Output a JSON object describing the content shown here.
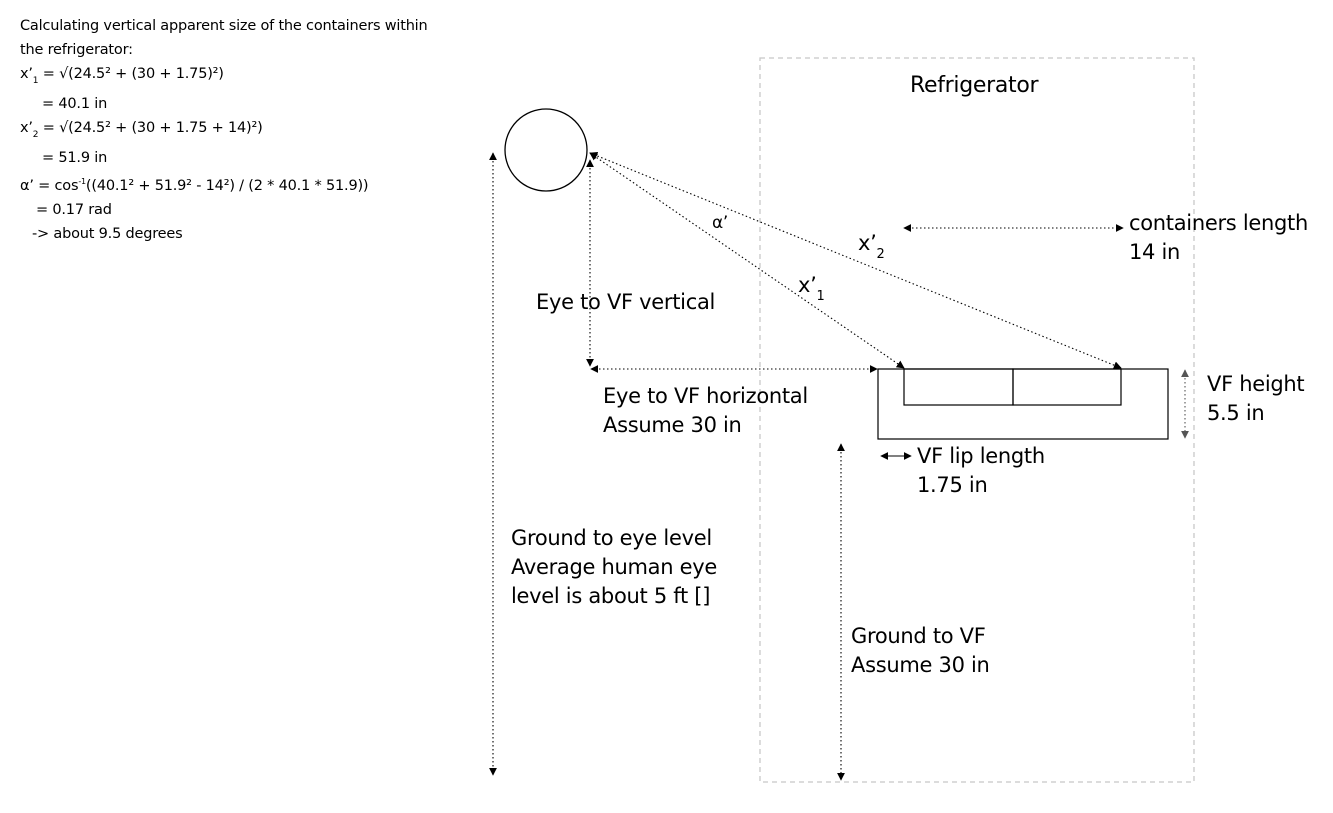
{
  "calculation": {
    "heading_1": "Calculating vertical apparent size of the containers within",
    "heading_2": "the refrigerator:",
    "x1_var": "x’",
    "x1_sub": "1",
    "x1_formula": " = √(24.5² + (30 + 1.75)²)",
    "x1_result": "= 40.1 in",
    "x2_var": "x’",
    "x2_sub": "2",
    "x2_formula": " = √(24.5² + (30 + 1.75 + 14)²)",
    "x2_result": "= 51.9 in",
    "alpha_formula_a": "α’ = cos",
    "alpha_formula_sup": "-1",
    "alpha_formula_b": "((40.1² + 51.9² - 14²) / (2 * 40.1 * 51.9))",
    "alpha_result": "= 0.17 rad",
    "alpha_degrees": "-> about 9.5 degrees"
  },
  "diagram": {
    "refrigerator_label": "Refrigerator",
    "alpha_label": "α’",
    "x2_label": "x’",
    "x2_sub": "2",
    "x1_label": "x’",
    "x1_sub": "1",
    "eye_to_vf_vertical": "Eye to VF vertical",
    "containers_length_1": "containers length",
    "containers_length_2": "14 in",
    "eye_to_vf_horizontal_1": "Eye to VF horizontal",
    "eye_to_vf_horizontal_2": "Assume 30 in",
    "vf_height_1": "VF height",
    "vf_height_2": "5.5 in",
    "vf_lip_1": "VF lip length",
    "vf_lip_2": "1.75 in",
    "ground_to_eye_1": "Ground to eye level",
    "ground_to_eye_2": "Average human eye",
    "ground_to_eye_3": "level is about 5 ft []",
    "ground_to_vf_1": "Ground to VF",
    "ground_to_vf_2": "Assume 30 in"
  }
}
